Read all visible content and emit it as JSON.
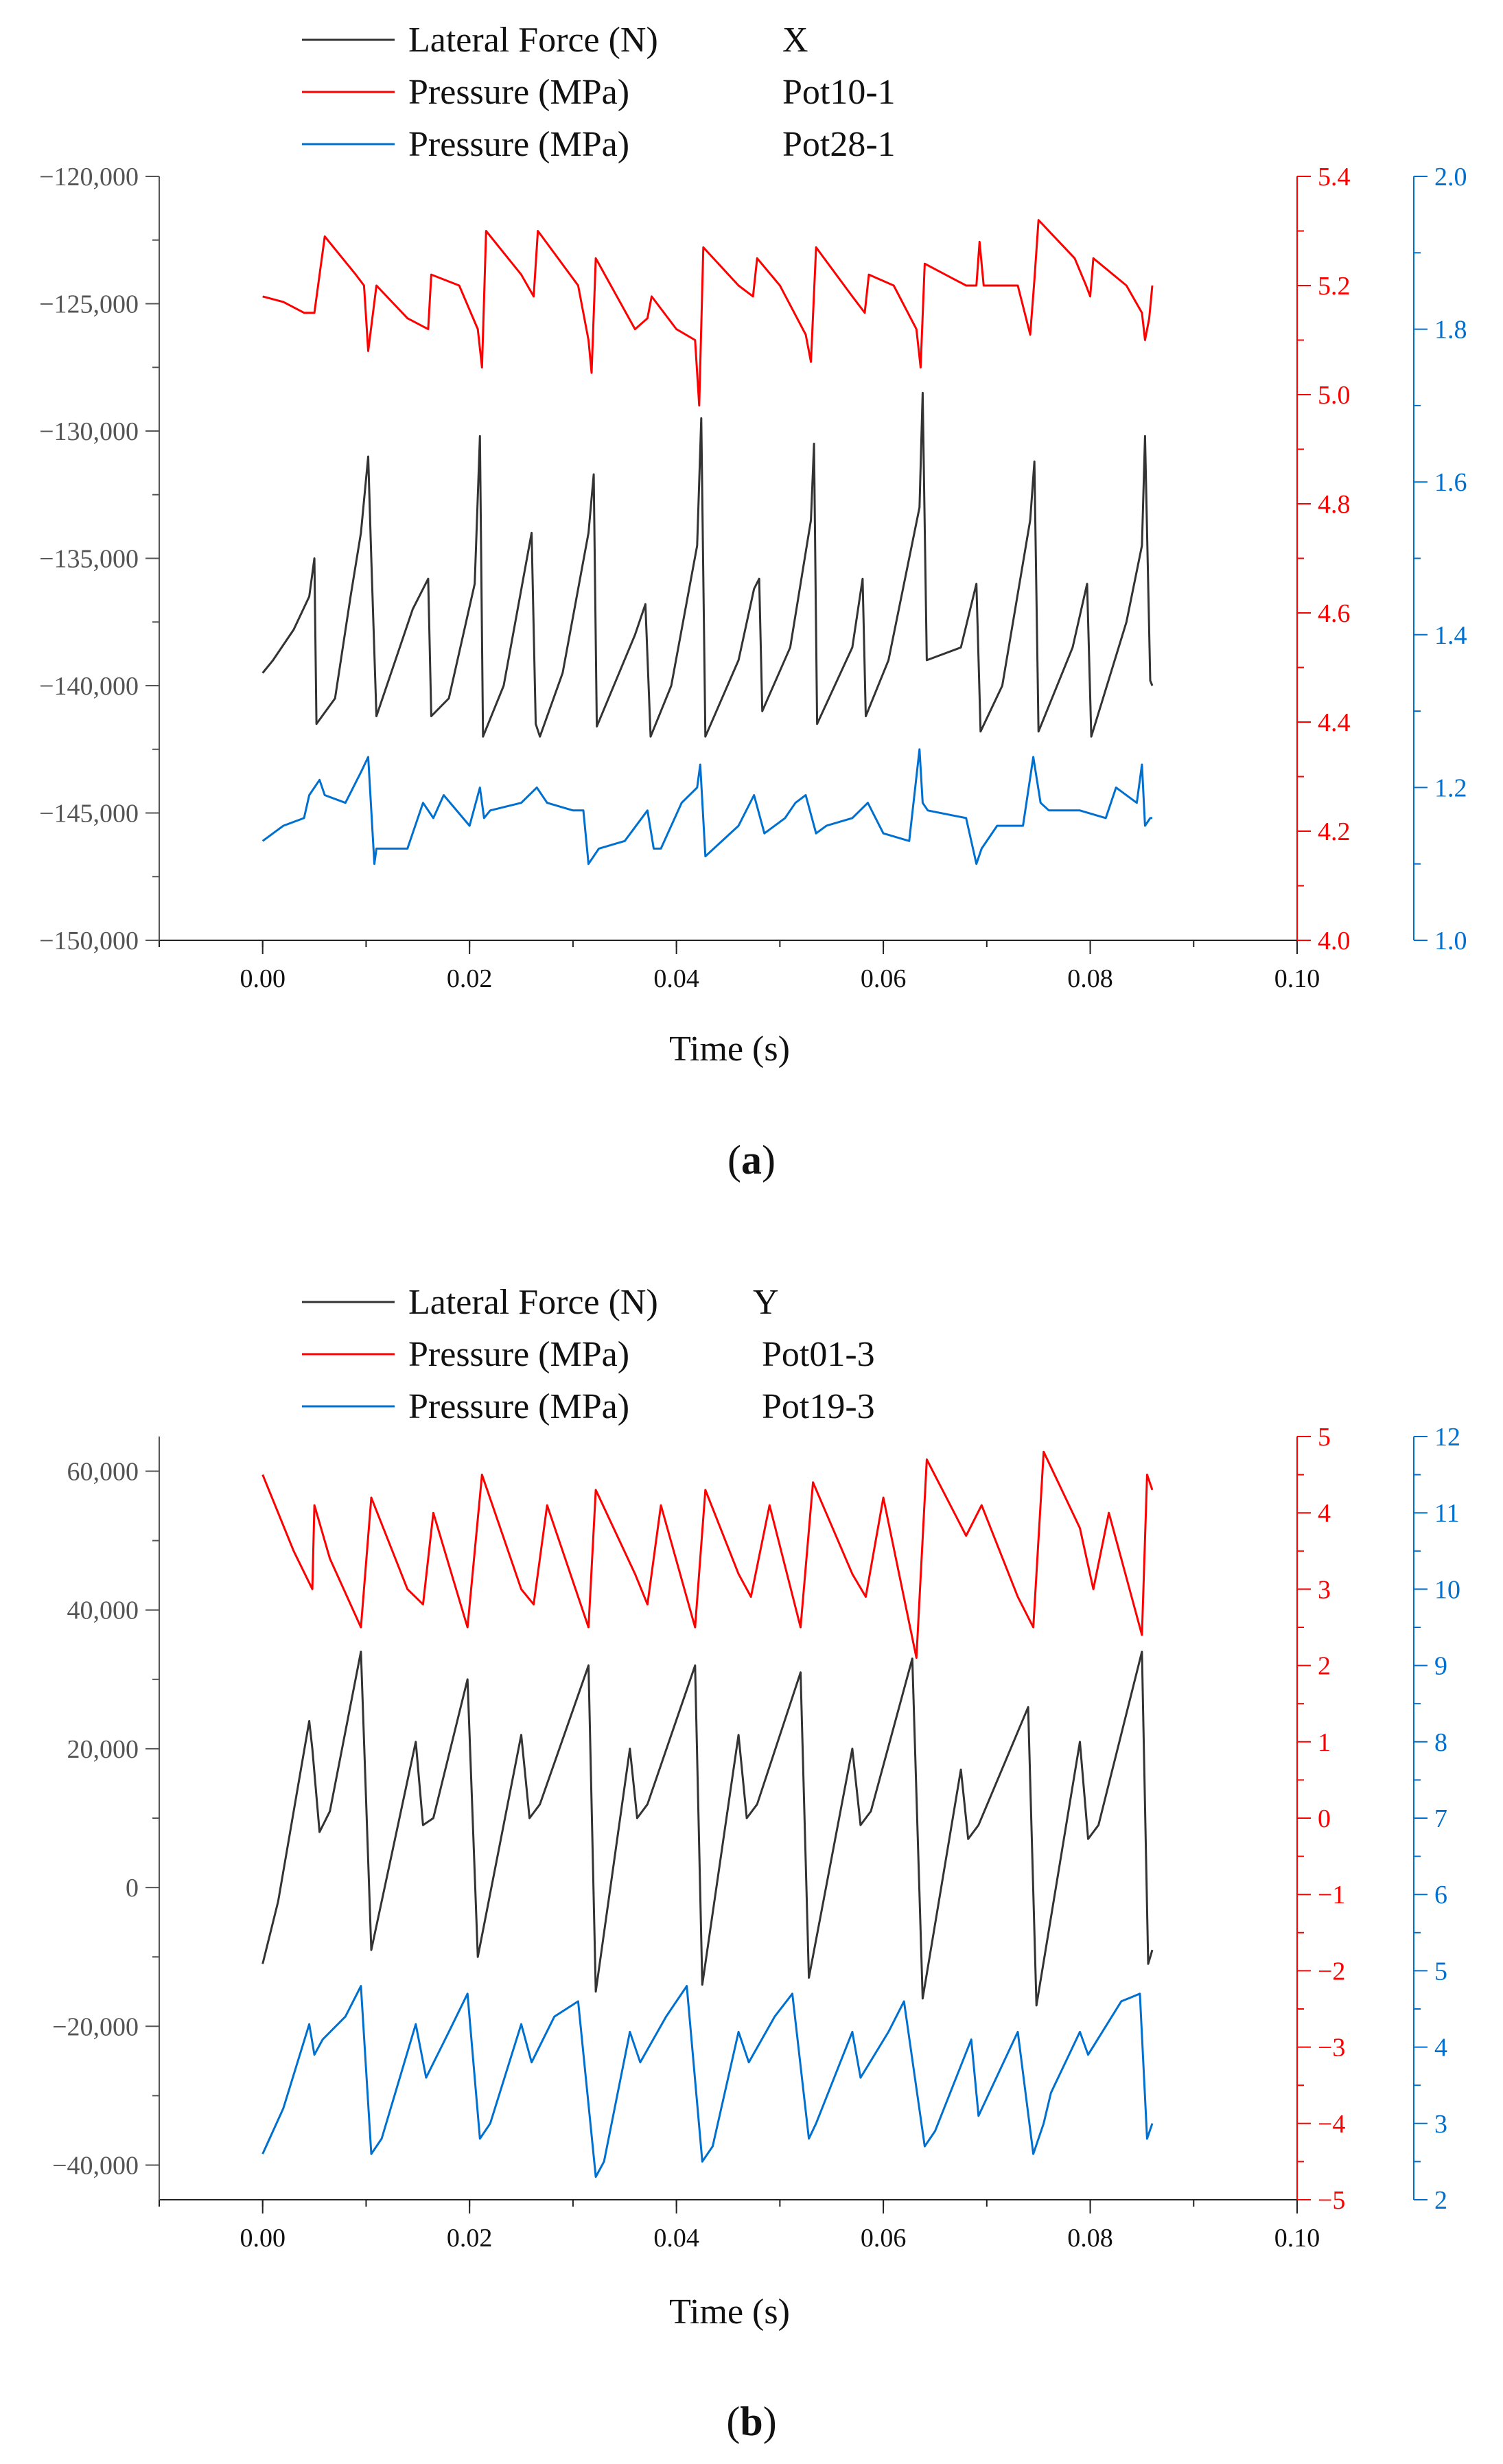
{
  "chart_data": [
    {
      "type": "line",
      "panel_label": "a",
      "xlabel": "Time (s)",
      "xlim": [
        -0.01,
        0.1
      ],
      "xticks": [
        "0.00",
        "0.02",
        "0.04",
        "0.06",
        "0.08",
        "0.10"
      ],
      "xtick_values": [
        0.0,
        0.02,
        0.04,
        0.06,
        0.08,
        0.1
      ],
      "legend": [
        {
          "label": "Lateral Force (N)",
          "tag": "X",
          "color": "#333333"
        },
        {
          "label": "Pressure (MPa)",
          "tag": "Pot10-1",
          "color": "#ff0000"
        },
        {
          "label": "Pressure (MPa)",
          "tag": "Pot28-1",
          "color": "#0070d0"
        }
      ],
      "axes": {
        "left": {
          "ylim": [
            -150000,
            -120000
          ],
          "ticks": [
            "−120,000",
            "−125,000",
            "−130,000",
            "−135,000",
            "−140,000",
            "−145,000",
            "−150,000"
          ],
          "tick_values": [
            -120000,
            -125000,
            -130000,
            -135000,
            -140000,
            -145000,
            -150000
          ],
          "color": "#555555"
        },
        "right1": {
          "ylim": [
            4.0,
            5.4
          ],
          "ticks": [
            "5.4",
            "5.2",
            "5.0",
            "4.8",
            "4.6",
            "4.4",
            "4.2",
            "4.0"
          ],
          "tick_values": [
            5.4,
            5.2,
            5.0,
            4.8,
            4.6,
            4.4,
            4.2,
            4.0
          ],
          "color": "#ff0000"
        },
        "right2": {
          "ylim": [
            1.0,
            2.0
          ],
          "ticks": [
            "2.0",
            "1.8",
            "1.6",
            "1.4",
            "1.2",
            "1.0"
          ],
          "tick_values": [
            2.0,
            1.8,
            1.6,
            1.4,
            1.2,
            1.0
          ],
          "color": "#0070d0"
        }
      },
      "series": [
        {
          "name": "Lateral Force (N)",
          "axis": "left",
          "color": "#333333",
          "x": [
            0,
            0.001,
            0.003,
            0.0045,
            0.005,
            0.0052,
            0.007,
            0.0085,
            0.0095,
            0.0102,
            0.0105,
            0.011,
            0.0145,
            0.016,
            0.0163,
            0.018,
            0.0205,
            0.021,
            0.0213,
            0.0233,
            0.026,
            0.0264,
            0.0268,
            0.029,
            0.0315,
            0.032,
            0.0323,
            0.036,
            0.037,
            0.0375,
            0.0395,
            0.042,
            0.0424,
            0.0428,
            0.046,
            0.0475,
            0.048,
            0.0483,
            0.051,
            0.053,
            0.0533,
            0.0536,
            0.057,
            0.058,
            0.0583,
            0.0605,
            0.0635,
            0.0638,
            0.0642,
            0.0675,
            0.069,
            0.0694,
            0.0715,
            0.0742,
            0.0746,
            0.075,
            0.0783,
            0.0797,
            0.0801,
            0.0835,
            0.085,
            0.0853,
            0.0858,
            0.086
          ],
          "values": [
            -139500,
            -139000,
            -137800,
            -136500,
            -135000,
            -141500,
            -140500,
            -136500,
            -134000,
            -131000,
            -135000,
            -141200,
            -137000,
            -135800,
            -141200,
            -140500,
            -136000,
            -130200,
            -142000,
            -140000,
            -134000,
            -141500,
            -142000,
            -139500,
            -134000,
            -131700,
            -141600,
            -138000,
            -136800,
            -142000,
            -140000,
            -134500,
            -129500,
            -142000,
            -139000,
            -136200,
            -135800,
            -141000,
            -138500,
            -133500,
            -130500,
            -141500,
            -138500,
            -135800,
            -141200,
            -139000,
            -133000,
            -128500,
            -139000,
            -138500,
            -136000,
            -141800,
            -140000,
            -133500,
            -131200,
            -141800,
            -138500,
            -136000,
            -142000,
            -137500,
            -134500,
            -130200,
            -139800,
            -140000
          ]
        },
        {
          "name": "Pressure (MPa) Pot10-1",
          "axis": "right1",
          "color": "#ff0000",
          "x": [
            0,
            0.002,
            0.004,
            0.005,
            0.006,
            0.009,
            0.0098,
            0.0102,
            0.011,
            0.014,
            0.016,
            0.0163,
            0.019,
            0.0208,
            0.0212,
            0.0216,
            0.025,
            0.0262,
            0.0266,
            0.027,
            0.0305,
            0.0315,
            0.0318,
            0.0322,
            0.036,
            0.0372,
            0.0376,
            0.04,
            0.0418,
            0.0422,
            0.0426,
            0.046,
            0.0474,
            0.0478,
            0.05,
            0.0525,
            0.053,
            0.0535,
            0.057,
            0.0582,
            0.0586,
            0.061,
            0.0632,
            0.0636,
            0.064,
            0.068,
            0.069,
            0.0693,
            0.0697,
            0.073,
            0.0742,
            0.0746,
            0.075,
            0.0785,
            0.0796,
            0.08,
            0.0803,
            0.0835,
            0.085,
            0.0853,
            0.0857,
            0.086
          ],
          "values": [
            5.18,
            5.17,
            5.15,
            5.15,
            5.29,
            5.22,
            5.2,
            5.08,
            5.2,
            5.14,
            5.12,
            5.22,
            5.2,
            5.12,
            5.05,
            5.3,
            5.22,
            5.18,
            5.3,
            5.29,
            5.2,
            5.1,
            5.04,
            5.25,
            5.12,
            5.14,
            5.18,
            5.12,
            5.1,
            4.98,
            5.27,
            5.2,
            5.18,
            5.25,
            5.2,
            5.11,
            5.06,
            5.27,
            5.18,
            5.15,
            5.22,
            5.2,
            5.12,
            5.05,
            5.24,
            5.2,
            5.2,
            5.28,
            5.2,
            5.2,
            5.11,
            5.21,
            5.32,
            5.25,
            5.2,
            5.18,
            5.25,
            5.2,
            5.15,
            5.1,
            5.14,
            5.2
          ]
        },
        {
          "name": "Pressure (MPa) Pot28-1",
          "axis": "right2",
          "color": "#0070d0",
          "x": [
            0,
            0.002,
            0.004,
            0.0045,
            0.0055,
            0.006,
            0.008,
            0.0095,
            0.0102,
            0.0108,
            0.011,
            0.014,
            0.0155,
            0.0165,
            0.0175,
            0.02,
            0.021,
            0.0214,
            0.022,
            0.025,
            0.0265,
            0.0275,
            0.03,
            0.031,
            0.0315,
            0.0325,
            0.035,
            0.0372,
            0.0378,
            0.0385,
            0.0405,
            0.042,
            0.0423,
            0.0428,
            0.046,
            0.0475,
            0.0485,
            0.0505,
            0.0515,
            0.0525,
            0.0535,
            0.0545,
            0.057,
            0.0585,
            0.06,
            0.0625,
            0.0635,
            0.0638,
            0.0643,
            0.068,
            0.069,
            0.0695,
            0.071,
            0.0735,
            0.0745,
            0.0752,
            0.076,
            0.079,
            0.0815,
            0.0825,
            0.0845,
            0.085,
            0.0853,
            0.0858,
            0.086
          ],
          "values": [
            1.13,
            1.15,
            1.16,
            1.19,
            1.21,
            1.19,
            1.18,
            1.22,
            1.24,
            1.1,
            1.12,
            1.12,
            1.18,
            1.16,
            1.19,
            1.15,
            1.2,
            1.16,
            1.17,
            1.18,
            1.2,
            1.18,
            1.17,
            1.17,
            1.1,
            1.12,
            1.13,
            1.17,
            1.12,
            1.12,
            1.18,
            1.2,
            1.23,
            1.11,
            1.15,
            1.19,
            1.14,
            1.16,
            1.18,
            1.19,
            1.14,
            1.15,
            1.16,
            1.18,
            1.14,
            1.13,
            1.25,
            1.18,
            1.17,
            1.16,
            1.1,
            1.12,
            1.15,
            1.15,
            1.24,
            1.18,
            1.17,
            1.17,
            1.16,
            1.2,
            1.18,
            1.23,
            1.15,
            1.16,
            1.16
          ]
        }
      ]
    },
    {
      "type": "line",
      "panel_label": "b",
      "xlabel": "Time (s)",
      "xlim": [
        -0.01,
        0.1
      ],
      "xticks": [
        "0.00",
        "0.02",
        "0.04",
        "0.06",
        "0.08",
        "0.10"
      ],
      "xtick_values": [
        0.0,
        0.02,
        0.04,
        0.06,
        0.08,
        0.1
      ],
      "legend": [
        {
          "label": "Lateral Force (N)",
          "tag": "Y",
          "color": "#333333"
        },
        {
          "label": "Pressure (MPa)",
          "tag": "Pot01-3",
          "color": "#ff0000"
        },
        {
          "label": "Pressure (MPa)",
          "tag": "Pot19-3",
          "color": "#0070d0"
        }
      ],
      "axes": {
        "left": {
          "ylim": [
            -45000,
            65000
          ],
          "ticks": [
            "60,000",
            "40,000",
            "20,000",
            "0",
            "−20,000",
            "−40,000"
          ],
          "tick_values": [
            60000,
            40000,
            20000,
            0,
            -20000,
            -40000
          ],
          "color": "#555555"
        },
        "right1": {
          "ylim": [
            -5,
            5
          ],
          "ticks": [
            "5",
            "4",
            "3",
            "2",
            "1",
            "0",
            "−1",
            "−2",
            "−3",
            "−4",
            "−5"
          ],
          "tick_values": [
            5,
            4,
            3,
            2,
            1,
            0,
            -1,
            -2,
            -3,
            -4,
            -5
          ],
          "color": "#ff0000"
        },
        "right2": {
          "ylim": [
            2,
            12
          ],
          "ticks": [
            "12",
            "11",
            "10",
            "9",
            "8",
            "7",
            "6",
            "5",
            "4",
            "3",
            "2"
          ],
          "tick_values": [
            12,
            11,
            10,
            9,
            8,
            7,
            6,
            5,
            4,
            3,
            2
          ],
          "color": "#0070d0"
        }
      },
      "series": [
        {
          "name": "Lateral Force (N) Y",
          "axis": "left",
          "color": "#333333",
          "x": [
            0,
            0.0015,
            0.0045,
            0.0048,
            0.0055,
            0.0065,
            0.0095,
            0.0105,
            0.0148,
            0.0155,
            0.0165,
            0.0198,
            0.0208,
            0.025,
            0.0258,
            0.0268,
            0.0315,
            0.0322,
            0.0355,
            0.0362,
            0.0372,
            0.0418,
            0.0425,
            0.046,
            0.0468,
            0.0478,
            0.052,
            0.0528,
            0.057,
            0.0578,
            0.0588,
            0.0628,
            0.0638,
            0.0675,
            0.0682,
            0.0692,
            0.074,
            0.0748,
            0.079,
            0.0798,
            0.0808,
            0.085,
            0.0856,
            0.086
          ],
          "values": [
            -11000,
            -2000,
            24000,
            20000,
            8000,
            11000,
            34000,
            -9000,
            21000,
            9000,
            10000,
            30000,
            -10000,
            22000,
            10000,
            12000,
            32000,
            -15000,
            20000,
            10000,
            12000,
            32000,
            -14000,
            22000,
            10000,
            12000,
            31000,
            -13000,
            20000,
            9000,
            11000,
            33000,
            -16000,
            17000,
            7000,
            9000,
            26000,
            -17000,
            21000,
            7000,
            9000,
            34000,
            -11000,
            -9000
          ]
        },
        {
          "name": "Pressure (MPa) Pot01-3",
          "axis": "right1",
          "color": "#ff0000",
          "x": [
            0,
            0.003,
            0.0048,
            0.005,
            0.0065,
            0.0095,
            0.0105,
            0.014,
            0.0155,
            0.0165,
            0.0198,
            0.0212,
            0.025,
            0.0262,
            0.0275,
            0.0315,
            0.0322,
            0.036,
            0.0372,
            0.0385,
            0.0418,
            0.0428,
            0.046,
            0.0472,
            0.049,
            0.052,
            0.0532,
            0.057,
            0.0583,
            0.06,
            0.0632,
            0.0642,
            0.068,
            0.0695,
            0.073,
            0.0745,
            0.0755,
            0.079,
            0.0803,
            0.0818,
            0.085,
            0.0855,
            0.086
          ],
          "values": [
            4.5,
            3.5,
            3.0,
            4.1,
            3.4,
            2.5,
            4.2,
            3.0,
            2.8,
            4.0,
            2.5,
            4.5,
            3.0,
            2.8,
            4.1,
            2.5,
            4.3,
            3.2,
            2.8,
            4.1,
            2.5,
            4.3,
            3.2,
            2.9,
            4.1,
            2.5,
            4.4,
            3.2,
            2.9,
            4.2,
            2.1,
            4.7,
            3.7,
            4.1,
            2.9,
            2.5,
            4.8,
            3.8,
            3.0,
            4.0,
            2.4,
            4.5,
            4.3
          ]
        },
        {
          "name": "Pressure (MPa) Pot19-3",
          "axis": "right2",
          "color": "#0070d0",
          "x": [
            0,
            0.002,
            0.0045,
            0.005,
            0.0058,
            0.008,
            0.0095,
            0.0105,
            0.0115,
            0.0148,
            0.0158,
            0.018,
            0.0198,
            0.021,
            0.022,
            0.025,
            0.026,
            0.0282,
            0.0305,
            0.0322,
            0.033,
            0.0355,
            0.0365,
            0.039,
            0.041,
            0.0425,
            0.0435,
            0.046,
            0.047,
            0.0495,
            0.0512,
            0.0528,
            0.0535,
            0.057,
            0.0578,
            0.0605,
            0.062,
            0.064,
            0.065,
            0.0685,
            0.0692,
            0.073,
            0.0745,
            0.0755,
            0.0762,
            0.079,
            0.0798,
            0.083,
            0.0848,
            0.0855,
            0.086
          ],
          "values": [
            2.6,
            3.2,
            4.3,
            3.9,
            4.1,
            4.4,
            4.8,
            2.6,
            2.8,
            4.3,
            3.6,
            4.2,
            4.7,
            2.8,
            3.0,
            4.3,
            3.8,
            4.4,
            4.6,
            2.3,
            2.5,
            4.2,
            3.8,
            4.4,
            4.8,
            2.5,
            2.7,
            4.2,
            3.8,
            4.4,
            4.7,
            2.8,
            3.0,
            4.2,
            3.6,
            4.2,
            4.6,
            2.7,
            2.9,
            4.1,
            3.1,
            4.2,
            2.6,
            3.0,
            3.4,
            4.2,
            3.9,
            4.6,
            4.7,
            2.8,
            3.0
          ]
        }
      ]
    }
  ]
}
